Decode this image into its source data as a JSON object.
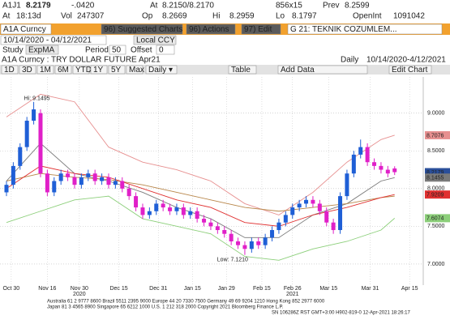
{
  "quote": {
    "ticker": "A1J1",
    "last": "8.2179",
    "change": "-.0420",
    "at_label": "At",
    "bid_ask": "8.2150/8.2170",
    "size": "856x15",
    "prev_label": "Prev",
    "prev": "8.2599",
    "time_label": "At",
    "time": "18:13d",
    "vol_label": "Vol",
    "vol": "247307",
    "open_label": "Op",
    "open": "8.2669",
    "high_label": "Hi",
    "high": "8.2959",
    "low_label": "Lo",
    "low": "8.1797",
    "oi_label": "OpenInt",
    "oi": "1091042"
  },
  "toolbar": {
    "security": "A1A Curncy",
    "suggested": "96) Suggested Charts",
    "actions": "96) Actions",
    "edit": "97) Edit",
    "chart_name": "G 21: TEKNIK COZUMLEM...",
    "date_range": "10/14/2020 - 04/12/2021",
    "currency": "Local CCY",
    "study_label": "Study",
    "study": "ExpMA",
    "period_label": "Period",
    "period": "50",
    "offset_label": "Offset",
    "offset": "0",
    "description": "A1A Curncy : TRY DOLLAR FUTURE Apr21",
    "frequency": "Daily",
    "range_text": "10/14/2020-4/12/2021",
    "ranges": [
      "1D",
      "3D",
      "1M",
      "6M",
      "YTD",
      "1Y",
      "5Y",
      "Max"
    ],
    "period_select": "Daily ▾",
    "table": "Table",
    "add_data": "Add Data",
    "edit_chart": "Edit Chart"
  },
  "chart_data": {
    "type": "candlestick",
    "categories": [
      null,
      null,
      null,
      null,
      null,
      null,
      null,
      null,
      null,
      null,
      null,
      null,
      null,
      null,
      null,
      null,
      null,
      null,
      null,
      null,
      null,
      null,
      null,
      null,
      null,
      null,
      null,
      null,
      null,
      null,
      null,
      null,
      null,
      null,
      null,
      null,
      null,
      null,
      null,
      null,
      null,
      null,
      null,
      null,
      null,
      null,
      null,
      null,
      null,
      null,
      null,
      null,
      null,
      null,
      null,
      null,
      null,
      null
    ],
    "open": [
      7.95,
      8.05,
      8.3,
      8.55,
      8.9,
      9.0,
      8.2,
      7.95,
      8.1,
      8.2,
      8.15,
      8.05,
      8.15,
      8.2,
      8.1,
      8.15,
      8.05,
      8.1,
      8.0,
      7.9,
      7.75,
      7.65,
      7.7,
      7.8,
      7.75,
      7.7,
      7.75,
      7.65,
      7.7,
      7.6,
      7.55,
      7.5,
      7.45,
      7.4,
      7.3,
      7.25,
      7.2,
      7.3,
      7.25,
      7.35,
      7.45,
      7.55,
      7.65,
      7.75,
      7.8,
      7.85,
      7.8,
      7.7,
      7.55,
      7.45,
      7.9,
      8.2,
      8.45,
      8.55,
      8.35,
      8.3,
      8.25,
      8.2669
    ],
    "high": [
      8.1,
      8.35,
      8.6,
      8.95,
      9.1495,
      9.05,
      8.25,
      8.15,
      8.25,
      8.25,
      8.2,
      8.2,
      8.25,
      8.25,
      8.2,
      8.2,
      8.15,
      8.15,
      8.05,
      7.95,
      7.8,
      7.75,
      7.85,
      7.85,
      7.8,
      7.8,
      7.8,
      7.75,
      7.75,
      7.65,
      7.6,
      7.55,
      7.5,
      7.45,
      7.35,
      7.3,
      7.35,
      7.35,
      7.4,
      7.5,
      7.6,
      7.7,
      7.8,
      7.85,
      7.9,
      7.9,
      7.85,
      7.75,
      7.6,
      7.95,
      8.25,
      8.5,
      8.65,
      8.6,
      8.4,
      8.35,
      8.3,
      8.2959
    ],
    "low": [
      7.9,
      8.0,
      8.25,
      8.5,
      8.85,
      8.15,
      7.9,
      7.9,
      8.05,
      8.1,
      8.0,
      8.0,
      8.1,
      8.05,
      8.05,
      8.0,
      8.0,
      7.95,
      7.85,
      7.7,
      7.6,
      7.6,
      7.65,
      7.7,
      7.65,
      7.65,
      7.6,
      7.6,
      7.55,
      7.5,
      7.45,
      7.4,
      7.35,
      7.25,
      7.2,
      7.121,
      7.15,
      7.2,
      7.2,
      7.3,
      7.4,
      7.5,
      7.6,
      7.7,
      7.75,
      7.75,
      7.65,
      7.5,
      7.4,
      7.4,
      7.85,
      8.15,
      8.4,
      8.3,
      8.25,
      8.2,
      8.15,
      8.1797
    ],
    "close": [
      8.05,
      8.3,
      8.55,
      8.9,
      9.05,
      8.2,
      7.95,
      8.1,
      8.2,
      8.15,
      8.05,
      8.15,
      8.2,
      8.1,
      8.15,
      8.05,
      8.1,
      8.0,
      7.9,
      7.75,
      7.65,
      7.7,
      7.8,
      7.75,
      7.7,
      7.75,
      7.65,
      7.7,
      7.6,
      7.55,
      7.5,
      7.45,
      7.4,
      7.3,
      7.25,
      7.2,
      7.3,
      7.25,
      7.35,
      7.45,
      7.55,
      7.65,
      7.75,
      7.8,
      7.85,
      7.8,
      7.7,
      7.55,
      7.45,
      7.9,
      8.2,
      8.45,
      8.55,
      8.35,
      8.3,
      8.25,
      8.2,
      8.2179
    ],
    "up_color": "#1f5fd6",
    "down_color": "#e020c8",
    "last_color": "#2a4f9a",
    "lines": [
      {
        "color": "#e79090",
        "x": [
          0,
          5,
          10,
          15,
          20,
          25,
          30,
          35,
          40,
          45,
          50,
          55,
          57
        ],
        "values": [
          8.95,
          9.25,
          9.15,
          8.55,
          8.35,
          8.25,
          8.1,
          7.8,
          7.65,
          7.95,
          8.35,
          8.65,
          8.7076
        ]
      },
      {
        "color": "#8ccf7a",
        "x": [
          0,
          5,
          10,
          15,
          20,
          25,
          30,
          35,
          40,
          45,
          50,
          55,
          57
        ],
        "values": [
          7.55,
          7.7,
          7.85,
          7.9,
          7.6,
          7.5,
          7.4,
          7.1,
          7.05,
          7.2,
          7.3,
          7.45,
          7.6074
        ]
      },
      {
        "color": "#7a7a7a",
        "x": [
          0,
          5,
          10,
          15,
          20,
          25,
          30,
          35,
          40,
          45,
          50,
          55,
          57
        ],
        "values": [
          8.1,
          8.6,
          8.2,
          8.1,
          7.95,
          7.75,
          7.6,
          7.35,
          7.35,
          7.65,
          7.8,
          8.1,
          8.1455
        ]
      },
      {
        "color": "#b8864a",
        "x": [
          0,
          5,
          10,
          15,
          20,
          25,
          30,
          35,
          40,
          45,
          50,
          55,
          57
        ],
        "values": [
          8.1,
          8.2,
          8.15,
          8.12,
          8.05,
          7.95,
          7.85,
          7.75,
          7.7,
          7.75,
          7.8,
          7.88,
          7.9
        ]
      },
      {
        "color": "#e03030",
        "x": [
          0,
          5,
          10,
          15,
          20,
          25,
          30,
          35,
          40,
          45,
          50,
          55,
          57
        ],
        "values": [
          8.0,
          8.3,
          8.2,
          8.15,
          8.0,
          7.85,
          7.75,
          7.55,
          7.5,
          7.65,
          7.75,
          7.88,
          7.9209
        ]
      }
    ],
    "label_series": [
      0,
      2,
      4,
      1
    ],
    "xlim": [
      -0.95,
      61.2
    ],
    "xticks": [
      {
        "value": 0.7,
        "label": "Oct 30"
      },
      {
        "value": 6,
        "label": "Nov 16"
      },
      {
        "value": 10.7,
        "label": "Nov 30"
      },
      {
        "value": 16.5,
        "label": "Dec 15"
      },
      {
        "value": 22.3,
        "label": "Dec 31"
      },
      {
        "value": 27.3,
        "label": "Jan 15"
      },
      {
        "value": 32.3,
        "label": "Jan 29"
      },
      {
        "value": 37.5,
        "label": "Feb 15"
      },
      {
        "value": 42,
        "label": "Feb 26"
      },
      {
        "value": 47.3,
        "label": "Mar 15"
      },
      {
        "value": 53.4,
        "label": "Mar 31"
      },
      {
        "value": 59.2,
        "label": "Apr 15"
      }
    ],
    "year_labels": [
      {
        "value": 10.7,
        "label": "2020"
      },
      {
        "value": 42,
        "label": "2021"
      }
    ],
    "ylim": [
      6.72,
      9.48
    ],
    "yticks": [
      {
        "value": 7,
        "label": "7.0000"
      },
      {
        "value": 7.5,
        "label": "7.5000"
      },
      {
        "value": 8,
        "label": "8.0000"
      },
      {
        "value": 8.5,
        "label": "8.5000"
      },
      {
        "value": 9,
        "label": "9.0000"
      }
    ],
    "annotations": [
      {
        "index": 4,
        "value": 9.1495,
        "label": "Hi: 9.1495"
      },
      {
        "index": 35,
        "value": 7.121,
        "label": "Low: 7.1210"
      }
    ],
    "grid": true
  },
  "footer": [
    "Australia 61 2 9777 8600 Brazil 5511 2395 9000 Europe 44 20 7330 7500 Germany 49 69 9204 1210 Hong Kong 852 2977 6000",
    "Japan 81 3 4565 8900        Singapore 65 6212 1000        U.S. 1 212 318 2000        Copyright 2021 Bloomberg Finance L.P.",
    "SN 106286Z RST  GMT+3:00 H902-819-0 12-Apr-2021 18:26:17"
  ]
}
